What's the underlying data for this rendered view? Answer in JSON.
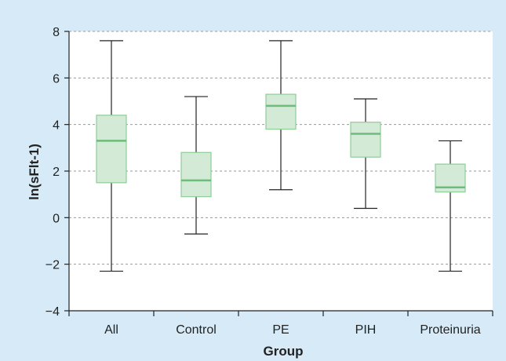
{
  "chart_data": {
    "type": "box",
    "title": "",
    "xlabel": "Group",
    "ylabel": "ln(sFlt-1)",
    "ylim": [
      -4,
      8
    ],
    "yticks": [
      -4,
      -2,
      0,
      2,
      4,
      6,
      8
    ],
    "grid": "horizontal dashed",
    "categories": [
      "All",
      "Control",
      "PE",
      "PIH",
      "Proteinuria"
    ],
    "boxes": [
      {
        "min": -2.3,
        "q1": 1.5,
        "median": 3.3,
        "q3": 4.4,
        "max": 7.6
      },
      {
        "min": -0.7,
        "q1": 0.9,
        "median": 1.6,
        "q3": 2.8,
        "max": 5.2
      },
      {
        "min": 1.2,
        "q1": 3.8,
        "median": 4.8,
        "q3": 5.3,
        "max": 7.6
      },
      {
        "min": 0.4,
        "q1": 2.6,
        "median": 3.6,
        "q3": 4.1,
        "max": 5.1
      },
      {
        "min": -2.3,
        "q1": 1.1,
        "median": 1.3,
        "q3": 2.3,
        "max": 3.3
      }
    ],
    "colors": {
      "background": "#d6ebf7",
      "plot_area": "#ffffff",
      "box_fill": "#d2ead6",
      "box_stroke": "#8fcc98",
      "median": "#6cbd79",
      "whisker": "#222222",
      "grid": "#9a9a9a"
    }
  }
}
